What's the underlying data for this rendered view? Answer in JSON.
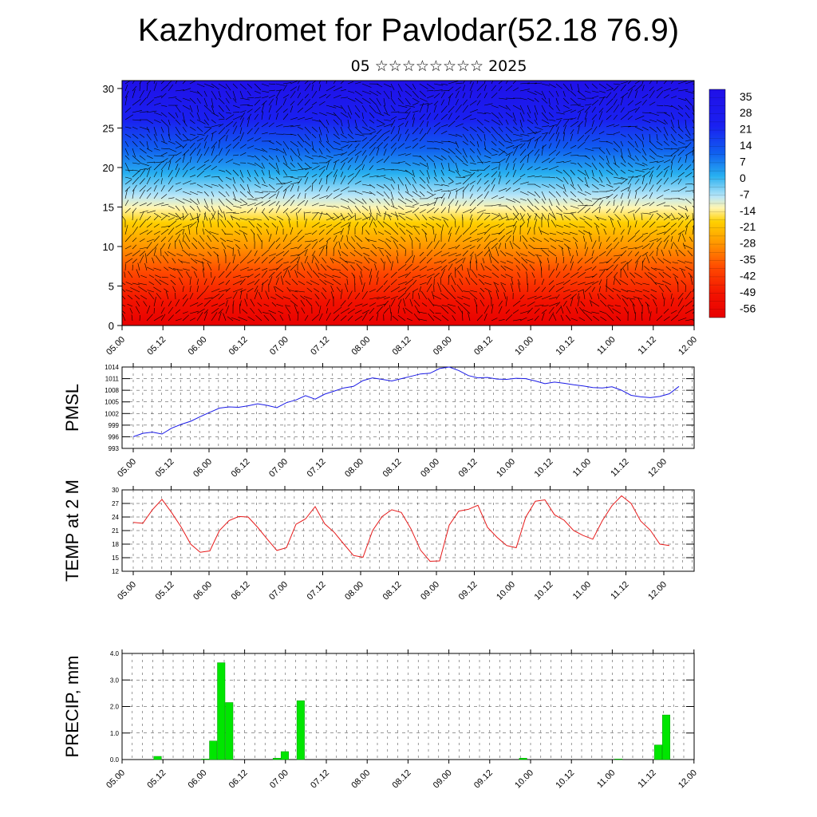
{
  "page": {
    "title": "Kazhydromet for Pavlodar(52.18 76.9)",
    "subtitle": "05 ☆☆☆☆☆☆☆☆ 2025"
  },
  "colors": {
    "pressure_line": "#1a1ae6",
    "temperature_line": "#e61a1a",
    "precip_bar": "#00e600",
    "wind_barb": "#000000"
  },
  "chart_data": [
    {
      "type": "heatmap",
      "name": "temperature-cross-section",
      "ylim": [
        0,
        31
      ],
      "yticks": [
        0,
        5,
        10,
        15,
        20,
        25,
        30
      ],
      "xticks": [
        "05.00",
        "05.12",
        "06.00",
        "06.12",
        "07.00",
        "07.12",
        "08.00",
        "08.12",
        "09.00",
        "09.12",
        "10.00",
        "10.12",
        "11.00",
        "11.12",
        "12.00"
      ],
      "colorbar": {
        "labels": [
          "35",
          "28",
          "21",
          "14",
          "7",
          "0",
          "-7",
          "-14",
          "-21",
          "-28",
          "-35",
          "-42",
          "-49",
          "-56"
        ],
        "range": [
          -60,
          38
        ]
      },
      "overlay": "wind vectors"
    },
    {
      "type": "line",
      "name": "pmsl",
      "ylabel": "PMSL",
      "ylim": [
        993,
        1014
      ],
      "yticks": [
        993,
        996,
        999,
        1002,
        1005,
        1008,
        1011,
        1014
      ],
      "xticks": [
        "05.00",
        "05.12",
        "06.00",
        "06.12",
        "07.00",
        "07.12",
        "08.00",
        "08.12",
        "09.00",
        "09.12",
        "10.00",
        "10.12",
        "11.00",
        "11.12",
        "12.00"
      ],
      "values": [
        996.0,
        996.9,
        997.2,
        996.7,
        998.2,
        999.2,
        1000.0,
        1001.2,
        1002.3,
        1003.4,
        1003.7,
        1003.6,
        1004.0,
        1004.5,
        1004.1,
        1003.5,
        1004.8,
        1005.5,
        1006.6,
        1005.7,
        1007.0,
        1007.8,
        1008.6,
        1009.0,
        1010.5,
        1011.2,
        1010.8,
        1010.4,
        1011.0,
        1011.6,
        1012.2,
        1012.4,
        1013.6,
        1014.0,
        1013.1,
        1011.8,
        1011.2,
        1011.3,
        1010.9,
        1010.8,
        1011.1,
        1011.0,
        1010.4,
        1009.7,
        1010.1,
        1009.8,
        1009.4,
        1009.1,
        1008.7,
        1008.6,
        1008.9,
        1008.0,
        1006.7,
        1006.3,
        1006.1,
        1006.4,
        1007.1,
        1009.0
      ]
    },
    {
      "type": "line",
      "name": "temp-2m",
      "ylabel": "TEMP at 2 M",
      "ylim": [
        12,
        30
      ],
      "yticks": [
        12,
        15,
        18,
        21,
        24,
        27,
        30
      ],
      "xticks": [
        "05.00",
        "05.12",
        "06.00",
        "06.12",
        "07.00",
        "07.12",
        "08.00",
        "08.12",
        "09.00",
        "09.12",
        "10.00",
        "10.12",
        "11.00",
        "11.12",
        "12.00"
      ],
      "values": [
        22.8,
        22.6,
        25.6,
        27.9,
        25.0,
        21.8,
        18.0,
        16.2,
        16.5,
        21.0,
        23.2,
        24.1,
        24.0,
        21.7,
        19.1,
        16.6,
        17.2,
        22.4,
        23.6,
        26.3,
        22.5,
        20.6,
        18.0,
        15.5,
        15.1,
        21.0,
        24.1,
        25.6,
        25.0,
        21.4,
        16.7,
        14.2,
        14.3,
        22.2,
        25.3,
        25.7,
        26.6,
        21.7,
        19.5,
        17.7,
        17.2,
        24.0,
        27.5,
        27.8,
        24.5,
        23.3,
        21.0,
        19.9,
        19.1,
        23.2,
        26.5,
        28.7,
        27.0,
        23.1,
        21.1,
        18.0,
        17.7
      ]
    },
    {
      "type": "bar",
      "name": "precip",
      "ylabel": "PRECIP, mm",
      "ylim": [
        0,
        4
      ],
      "yticks": [
        "0.0",
        "1.0",
        "2.0",
        "3.0",
        "4.0"
      ],
      "xticks": [
        "05.00",
        "05.12",
        "06.00",
        "06.12",
        "07.00",
        "07.12",
        "08.00",
        "08.12",
        "09.00",
        "09.12",
        "10.00",
        "10.12",
        "11.00",
        "11.12",
        "12.00"
      ],
      "values": [
        0,
        0,
        0,
        0,
        0.12,
        0,
        0,
        0,
        0,
        0,
        0.02,
        0.7,
        3.65,
        2.15,
        0,
        0,
        0,
        0,
        0,
        0.05,
        0.3,
        0,
        2.22,
        0,
        0,
        0,
        0,
        0,
        0,
        0,
        0,
        0,
        0,
        0,
        0,
        0,
        0,
        0,
        0,
        0,
        0,
        0,
        0,
        0,
        0,
        0,
        0,
        0,
        0,
        0,
        0.05,
        0,
        0,
        0,
        0,
        0,
        0,
        0,
        0,
        0,
        0,
        0,
        0.02,
        0,
        0,
        0,
        0,
        0.55,
        1.68,
        0,
        0,
        0
      ]
    }
  ]
}
